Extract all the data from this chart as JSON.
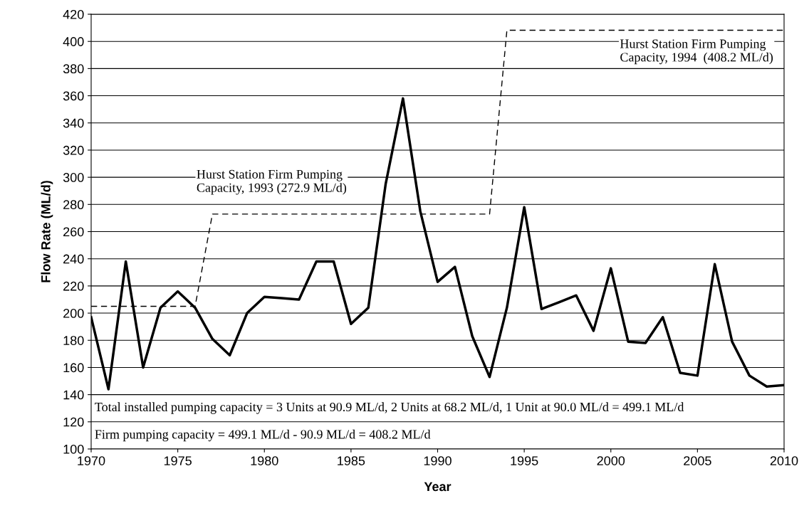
{
  "chart_data": {
    "type": "line",
    "xlabel": "Year",
    "ylabel": "Flow Rate (ML/d)",
    "xlim": [
      1970,
      2010
    ],
    "xticks": [
      1970,
      1975,
      1980,
      1985,
      1990,
      1995,
      2000,
      2005,
      2010
    ],
    "ylim": [
      100,
      420
    ],
    "yticks": [
      100,
      120,
      140,
      160,
      180,
      200,
      220,
      240,
      260,
      280,
      300,
      320,
      340,
      360,
      380,
      400,
      420
    ],
    "grid": "y",
    "marker": "none",
    "series": [
      {
        "color": "#000000",
        "line_style": "solid",
        "x": [
          1970,
          1971,
          1972,
          1973,
          1974,
          1975,
          1976,
          1977,
          1978,
          1979,
          1980,
          1981,
          1982,
          1983,
          1984,
          1985,
          1986,
          1987,
          1988,
          1989,
          1990,
          1991,
          1992,
          1993,
          1994,
          1995,
          1996,
          1997,
          1998,
          1999,
          2000,
          2001,
          2002,
          2003,
          2004,
          2005,
          2006,
          2007,
          2008,
          2009,
          2010
        ],
        "values": [
          197,
          144,
          238,
          160,
          204,
          216,
          204,
          181,
          169,
          200,
          212,
          211,
          210,
          238,
          238,
          192,
          204,
          295,
          358,
          275,
          223,
          234,
          183,
          153,
          204,
          278,
          203,
          208,
          213,
          187,
          233,
          179,
          178,
          197,
          156,
          154,
          236,
          179,
          154,
          146,
          147
        ]
      },
      {
        "color": "#000000",
        "line_style": "dashed",
        "x": [
          1970,
          1976,
          1977,
          1993,
          1994,
          2010
        ],
        "values": [
          205,
          205,
          272.9,
          272.9,
          408.2,
          408.2
        ]
      }
    ],
    "annotations": [
      "Hurst Station Firm Pumping\nCapacity, 1993 (272.9 ML/d)",
      "Hurst Station Firm Pumping\nCapacity, 1994  (408.2 ML/d)",
      "Total installed pumping capacity = 3 Units at 90.9 ML/d, 2 Units at 68.2 ML/d, 1 Unit at 90.0 ML/d = 499.1 ML/d",
      "Firm pumping capacity = 499.1 ML/d - 90.9 ML/d = 408.2 ML/d"
    ]
  }
}
